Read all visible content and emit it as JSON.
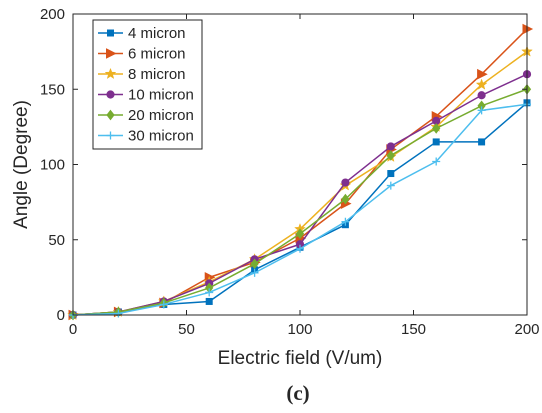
{
  "chart_data": {
    "type": "line",
    "title": "",
    "xlabel": "Electric field (V/um)",
    "ylabel": "Angle (Degree)",
    "xlim": [
      0,
      200
    ],
    "ylim": [
      0,
      200
    ],
    "xticks": [
      0,
      50,
      100,
      150,
      200
    ],
    "yticks": [
      0,
      50,
      100,
      150,
      200
    ],
    "grid": false,
    "legend_position": "top-left",
    "x": [
      0,
      20,
      40,
      60,
      80,
      100,
      120,
      140,
      160,
      180,
      200
    ],
    "series": [
      {
        "name": "4 micron",
        "color": "#0072BD",
        "marker": "square",
        "values": [
          0,
          2,
          7,
          9,
          30,
          45,
          60,
          94,
          115,
          115,
          141
        ]
      },
      {
        "name": "6 micron",
        "color": "#D95319",
        "marker": "triangle-right",
        "values": [
          0,
          2,
          8,
          25,
          35,
          51,
          74,
          110,
          132,
          160,
          190
        ]
      },
      {
        "name": "8 micron",
        "color": "#EDB120",
        "marker": "star",
        "values": [
          0,
          2,
          9,
          22,
          37,
          57,
          86,
          105,
          125,
          153,
          175
        ]
      },
      {
        "name": "10 micron",
        "color": "#7E2F8E",
        "marker": "circle",
        "values": [
          0,
          2,
          9,
          21,
          37,
          47,
          88,
          112,
          129,
          146,
          160
        ]
      },
      {
        "name": "20 micron",
        "color": "#77AC30",
        "marker": "diamond",
        "values": [
          0,
          2,
          8,
          18,
          34,
          54,
          77,
          106,
          124,
          139,
          150
        ]
      },
      {
        "name": "30 micron",
        "color": "#4DBEEE",
        "marker": "plus",
        "values": [
          0,
          1,
          7,
          15,
          28,
          44,
          62,
          86,
          102,
          136,
          140
        ]
      }
    ]
  },
  "caption": "(c)"
}
